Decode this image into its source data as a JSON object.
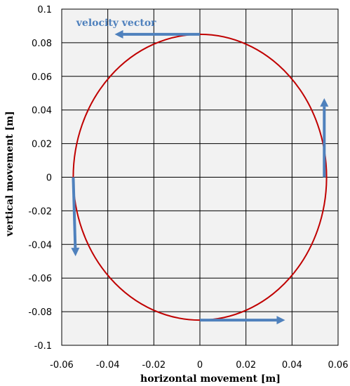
{
  "chart_data": {
    "type": "scatter",
    "xlabel": "horizontal movement [m]",
    "ylabel": "vertical movement [m]",
    "xlim": [
      -0.06,
      0.06
    ],
    "ylim": [
      -0.1,
      0.1
    ],
    "xticks": [
      -0.06,
      -0.04,
      -0.02,
      0,
      0.02,
      0.04,
      0.06
    ],
    "yticks": [
      -0.1,
      -0.08,
      -0.06,
      -0.04,
      -0.02,
      0,
      0.02,
      0.04,
      0.06,
      0.08,
      0.1
    ],
    "xtick_labels": [
      "-0.06",
      "-0.04",
      "-0.02",
      "0",
      "0.02",
      "0.04",
      "0.06"
    ],
    "ytick_labels": [
      "-0.1",
      "-0.08",
      "-0.06",
      "-0.04",
      "-0.02",
      "0",
      "0.02",
      "0.04",
      "0.06",
      "0.08",
      "0.1"
    ],
    "grid": true,
    "trajectory": {
      "shape": "ellipse",
      "center": [
        0,
        0
      ],
      "semi_axis_x": 0.055,
      "semi_axis_y": 0.085,
      "color": "#c00000"
    },
    "arrows": [
      {
        "from": [
          0,
          0.085
        ],
        "to": [
          -0.037,
          0.085
        ]
      },
      {
        "from": [
          0.054,
          0
        ],
        "to": [
          0.054,
          0.047
        ]
      },
      {
        "from": [
          0,
          -0.085
        ],
        "to": [
          0.037,
          -0.085
        ]
      },
      {
        "from": [
          -0.055,
          0
        ],
        "to": [
          -0.054,
          -0.047
        ]
      }
    ],
    "arrow_color": "#4f81bd",
    "annotation": {
      "text": "velocity vector",
      "x": -0.04,
      "y": 0.092
    },
    "plot_background": "#f2f2f2"
  }
}
